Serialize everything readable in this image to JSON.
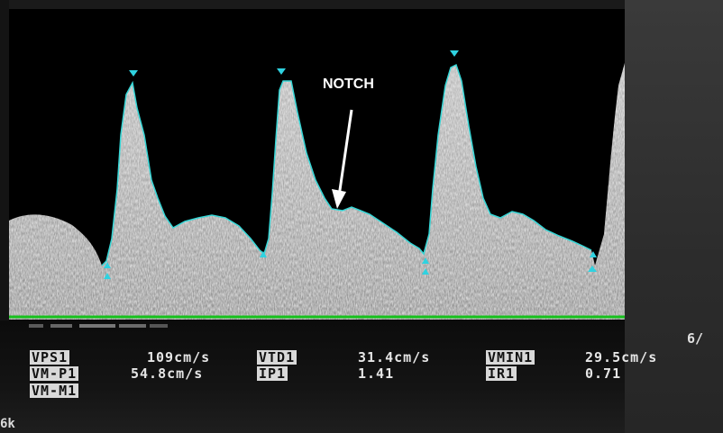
{
  "annotation": {
    "notch_label": "NOTCH"
  },
  "measurements": {
    "row1": [
      {
        "label": "VPS1",
        "value": "109cm/s"
      },
      {
        "label": "VTD1",
        "value": "31.4cm/s"
      },
      {
        "label": "VMIN1",
        "value": "29.5cm/s"
      }
    ],
    "row2": [
      {
        "label": "VM-P1",
        "value": "54.8cm/s"
      },
      {
        "label": "IP1",
        "value": "1.41"
      },
      {
        "label": "IR1",
        "value": "0.71"
      }
    ],
    "row3": [
      {
        "label": "VM-M1",
        "value": ""
      }
    ]
  },
  "speed_tag": "6/",
  "corner_tag": "6k",
  "colors": {
    "trace": "#35d6d6",
    "marker": "#2fd2e0",
    "baseline": "#16c21c"
  }
}
